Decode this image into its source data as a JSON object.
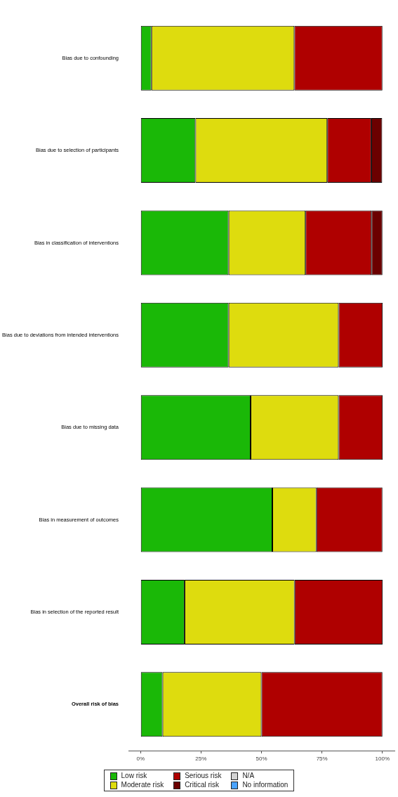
{
  "chart_data": {
    "type": "bar",
    "orientation": "horizontal",
    "stacked": true,
    "categories": [
      "Bias due to confounding",
      "Bias due to selection of participants",
      "Bias in classification of interventions",
      "Bias due to deviations from intended interventions",
      "Bias due to missing data",
      "Bias in measurement of outcomes",
      "Bias in selection of the reported result",
      "Overall risk of bias"
    ],
    "series": [
      {
        "name": "Low risk",
        "color": "#1ab807",
        "values": [
          4.5,
          22.7,
          36.4,
          36.4,
          45.5,
          54.5,
          18.2,
          9.1
        ]
      },
      {
        "name": "Moderate risk",
        "color": "#dedc0e",
        "values": [
          59.1,
          54.5,
          31.8,
          45.5,
          36.4,
          18.2,
          45.5,
          40.9
        ]
      },
      {
        "name": "Serious risk",
        "color": "#af0000",
        "values": [
          36.4,
          18.2,
          27.3,
          18.2,
          18.2,
          27.3,
          36.4,
          50.0
        ]
      },
      {
        "name": "Critical risk",
        "color": "#6b0000",
        "values": [
          null,
          4.5,
          4.5,
          null,
          null,
          null,
          null,
          null
        ]
      },
      {
        "name": "N/A",
        "color": "#d3d3d3",
        "values": [
          null,
          null,
          null,
          null,
          null,
          null,
          null,
          null
        ]
      },
      {
        "name": "No information",
        "color": "#4aa3ff",
        "values": [
          null,
          null,
          null,
          null,
          null,
          null,
          null,
          null
        ]
      }
    ],
    "xlim": [
      -5,
      105
    ],
    "xticks": [
      {
        "value": 0,
        "label": "0%"
      },
      {
        "value": 25,
        "label": "25%"
      },
      {
        "value": 50,
        "label": "50%"
      },
      {
        "value": 75,
        "label": "75%"
      },
      {
        "value": 100,
        "label": "100%"
      }
    ],
    "grid": false,
    "legend": "bottom"
  }
}
